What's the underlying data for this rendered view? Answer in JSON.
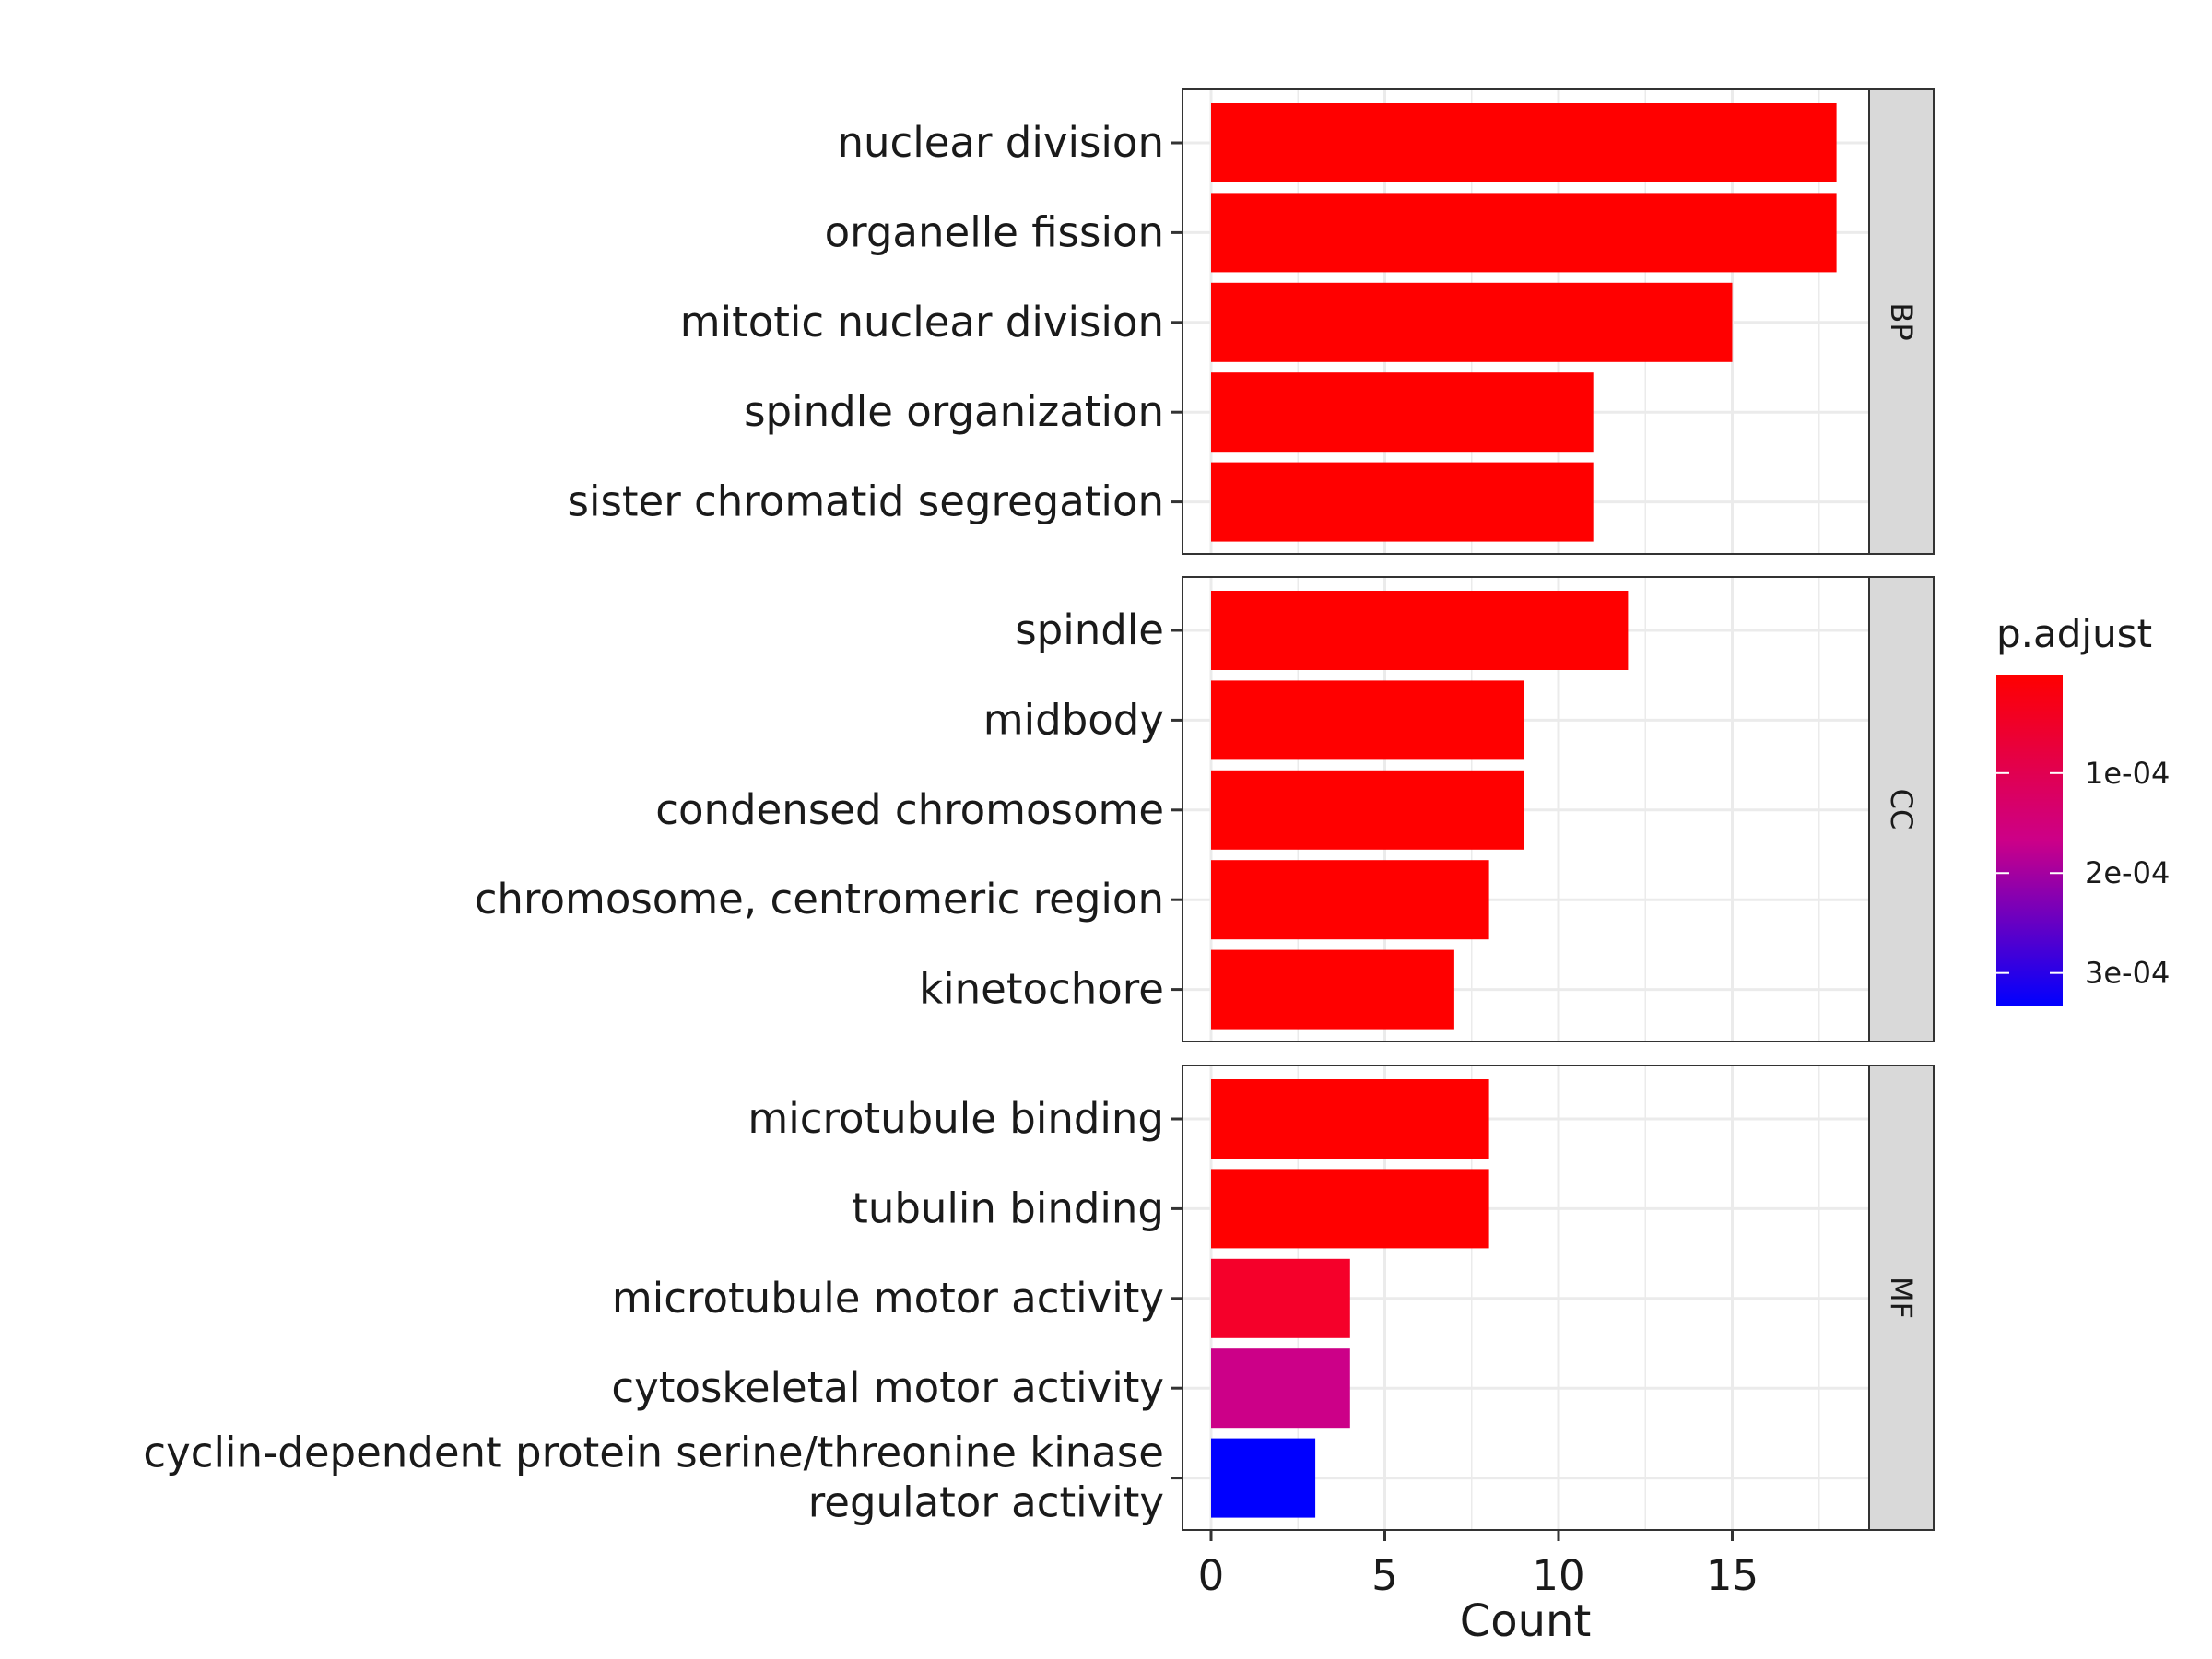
{
  "chart_data": {
    "type": "bar",
    "orientation": "horizontal",
    "xlabel": "Count",
    "xlim": [
      0,
      19
    ],
    "x_ticks": [
      "0",
      "5",
      "10",
      "15"
    ],
    "x_tick_values": [
      0,
      5,
      10,
      15
    ],
    "grid": true,
    "legend_position": "right",
    "facets": [
      {
        "name": "BP",
        "bars": [
          {
            "label": "nuclear division",
            "value": 18,
            "color": "#FF0000"
          },
          {
            "label": "organelle fission",
            "value": 18,
            "color": "#FF0000"
          },
          {
            "label": "mitotic nuclear division",
            "value": 15,
            "color": "#FF0000"
          },
          {
            "label": "spindle organization",
            "value": 11,
            "color": "#FF0000"
          },
          {
            "label": "sister chromatid segregation",
            "value": 11,
            "color": "#FF0000"
          }
        ]
      },
      {
        "name": "CC",
        "bars": [
          {
            "label": "spindle",
            "value": 12,
            "color": "#FF0000"
          },
          {
            "label": "midbody",
            "value": 9,
            "color": "#FF0000"
          },
          {
            "label": "condensed chromosome",
            "value": 9,
            "color": "#FF0000"
          },
          {
            "label": "chromosome, centromeric region",
            "value": 8,
            "color": "#FF0000"
          },
          {
            "label": "kinetochore",
            "value": 7,
            "color": "#FF0000"
          }
        ]
      },
      {
        "name": "MF",
        "bars": [
          {
            "label": "microtubule binding",
            "value": 8,
            "color": "#FF0000"
          },
          {
            "label": "tubulin binding",
            "value": 8,
            "color": "#FF0000"
          },
          {
            "label": "microtubule motor activity",
            "value": 4,
            "color": "#F5002A"
          },
          {
            "label": "cytoskeletal motor activity",
            "value": 4,
            "color": "#CC0088"
          },
          {
            "label": "cyclin-dependent protein serine/threonine kinase regulator activity",
            "label_lines": [
              "cyclin-dependent protein serine/threonine kinase",
              "regulator activity"
            ],
            "value": 3,
            "color": "#0000FF"
          }
        ]
      }
    ],
    "colorbar": {
      "title": "p.adjust",
      "low_color": "#FF0000",
      "high_color": "#0000FF",
      "ticks": [
        "1e-04",
        "2e-04",
        "3e-04"
      ],
      "tick_values": [
        0.0001,
        0.0002,
        0.0003
      ],
      "range": [
        1.5e-06,
        0.0003335
      ]
    }
  }
}
